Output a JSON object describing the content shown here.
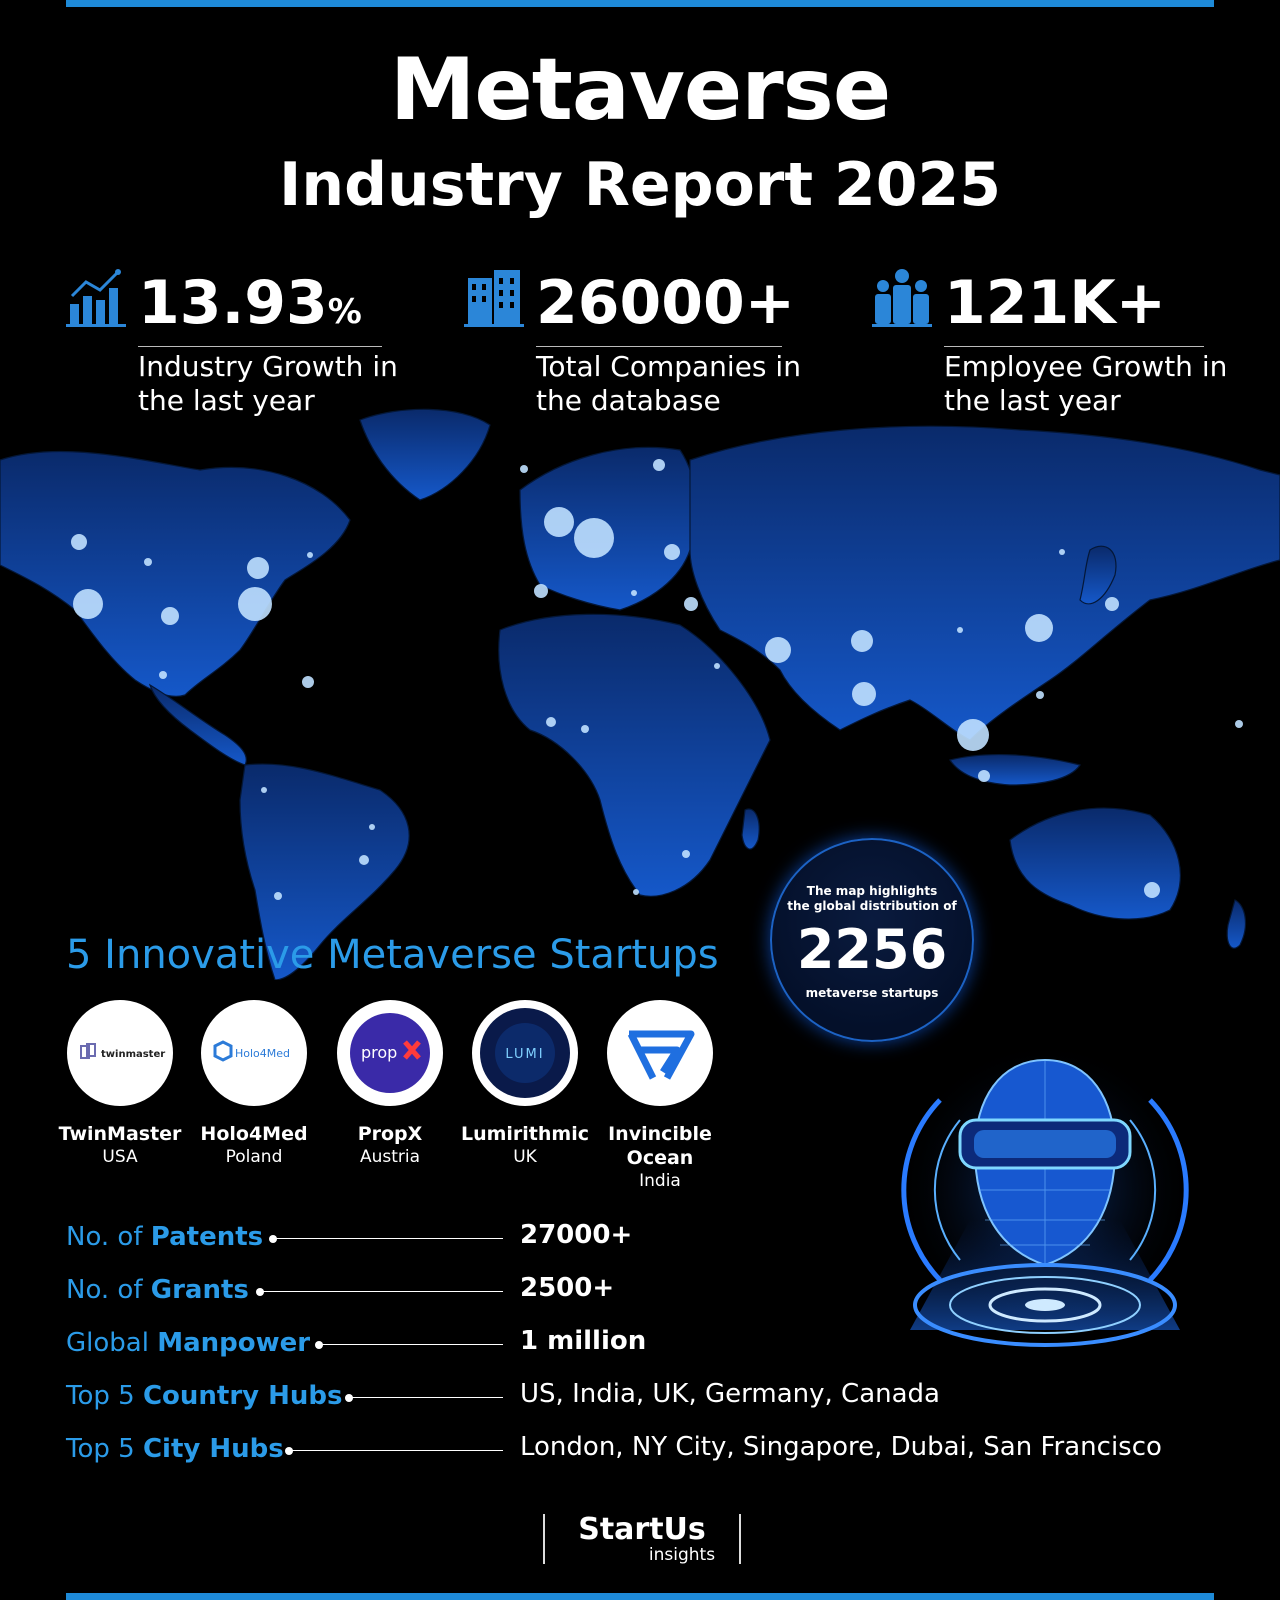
{
  "header": {
    "title": "Metaverse",
    "subtitle": "Industry Report 2025"
  },
  "stats": [
    {
      "value": "13.93",
      "unit": "%",
      "label_line1": "Industry Growth in",
      "label_line2": "the last year",
      "icon": "growth-chart-icon"
    },
    {
      "value": "26000+",
      "unit": "",
      "label_line1": "Total Companies in",
      "label_line2": "the database",
      "icon": "buildings-icon"
    },
    {
      "value": "121K+",
      "unit": "",
      "label_line1": "Employee Growth in",
      "label_line2": "the last year",
      "icon": "people-icon"
    }
  ],
  "map_badge": {
    "line1": "The map highlights",
    "line2": "the global distribution of",
    "count": "2256",
    "line3": "metaverse startups"
  },
  "startups_section": {
    "title": "5 Innovative Metaverse Startups"
  },
  "startups": [
    {
      "name": "TwinMaster",
      "name2": "",
      "country": "USA",
      "logo_text": "twinmaster"
    },
    {
      "name": "Holo4Med",
      "name2": "",
      "country": "Poland",
      "logo_text": "Holo4Med"
    },
    {
      "name": "PropX",
      "name2": "",
      "country": "Austria",
      "logo_text": "prop"
    },
    {
      "name": "Lumirithmic",
      "name2": "",
      "country": "UK",
      "logo_text": "LUMI"
    },
    {
      "name": "Invincible",
      "name2": "Ocean",
      "country": "India",
      "logo_text": ""
    }
  ],
  "facts": [
    {
      "prefix": "No. of ",
      "bold": "Patents",
      "value": "27000+",
      "value_bold": true
    },
    {
      "prefix": "No. of ",
      "bold": "Grants",
      "value": "2500+",
      "value_bold": true
    },
    {
      "prefix": "Global ",
      "bold": "Manpower",
      "value": "1 million",
      "value_bold": true
    },
    {
      "prefix": "Top 5 ",
      "bold": "Country Hubs",
      "value": "US, India, UK, Germany, Canada",
      "value_bold": false
    },
    {
      "prefix": "Top 5 ",
      "bold": "City Hubs",
      "value": "London, NY City, Singapore, Dubai, San Francisco",
      "value_bold": false
    }
  ],
  "brand": {
    "name": "StartUs",
    "sub": "insights"
  },
  "colors": {
    "accent": "#1e8ad8",
    "map": "#0d47a1",
    "highlight": "#2b9be8",
    "background": "#000000"
  }
}
